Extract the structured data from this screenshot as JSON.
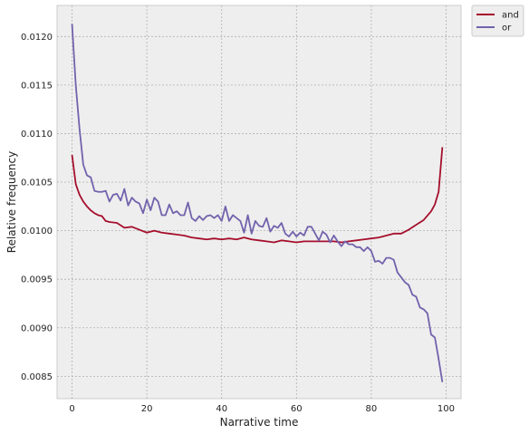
{
  "chart_data": {
    "type": "line",
    "title": "",
    "xlabel": "Narrative time",
    "ylabel": "Relative frequency",
    "xlim": [
      -4,
      104
    ],
    "ylim": [
      0.00827,
      0.01232
    ],
    "xticks": [
      0,
      20,
      40,
      60,
      80,
      100
    ],
    "yticks": [
      0.0085,
      0.009,
      0.0095,
      0.01,
      0.0105,
      0.011,
      0.0115,
      0.012
    ],
    "xtick_labels": [
      "0",
      "20",
      "40",
      "60",
      "80",
      "100"
    ],
    "ytick_labels": [
      "0.0085",
      "0.0090",
      "0.0095",
      "0.0100",
      "0.0105",
      "0.0110",
      "0.0115",
      "0.0120"
    ],
    "grid": true,
    "legend_position": "outside-top-right",
    "series": [
      {
        "name": "and",
        "color": "#a50f2c",
        "x": [
          0,
          1,
          2,
          3,
          4,
          5,
          6,
          7,
          8,
          9,
          10,
          12,
          14,
          16,
          18,
          20,
          22,
          24,
          26,
          28,
          30,
          32,
          34,
          36,
          38,
          40,
          42,
          44,
          46,
          48,
          50,
          52,
          54,
          56,
          58,
          60,
          62,
          64,
          66,
          68,
          70,
          72,
          74,
          76,
          78,
          80,
          82,
          84,
          86,
          88,
          90,
          92,
          94,
          96,
          97,
          98,
          99
        ],
        "y": [
          0.01078,
          0.01048,
          0.01037,
          0.0103,
          0.01025,
          0.01021,
          0.01018,
          0.01016,
          0.01015,
          0.0101,
          0.01009,
          0.01008,
          0.01003,
          0.01004,
          0.01001,
          0.00998,
          0.01,
          0.00998,
          0.00997,
          0.00996,
          0.00995,
          0.00993,
          0.00992,
          0.00991,
          0.00992,
          0.00991,
          0.00992,
          0.00991,
          0.00993,
          0.00991,
          0.0099,
          0.00989,
          0.00988,
          0.0099,
          0.00989,
          0.00988,
          0.00989,
          0.00989,
          0.00989,
          0.00989,
          0.00989,
          0.00988,
          0.00989,
          0.0099,
          0.00991,
          0.00992,
          0.00993,
          0.00995,
          0.00997,
          0.00997,
          0.01001,
          0.01006,
          0.01011,
          0.0102,
          0.01027,
          0.0104,
          0.01086
        ]
      },
      {
        "name": "or",
        "color": "#7262ac",
        "x": [
          0,
          1,
          2,
          3,
          4,
          5,
          6,
          7,
          8,
          9,
          10,
          11,
          12,
          13,
          14,
          15,
          16,
          17,
          18,
          19,
          20,
          21,
          22,
          23,
          24,
          25,
          26,
          27,
          28,
          29,
          30,
          31,
          32,
          33,
          34,
          35,
          36,
          37,
          38,
          39,
          40,
          41,
          42,
          43,
          44,
          45,
          46,
          47,
          48,
          49,
          50,
          51,
          52,
          53,
          54,
          55,
          56,
          57,
          58,
          59,
          60,
          61,
          62,
          63,
          64,
          65,
          66,
          67,
          68,
          69,
          70,
          71,
          72,
          73,
          74,
          75,
          76,
          77,
          78,
          79,
          80,
          81,
          82,
          83,
          84,
          85,
          86,
          87,
          88,
          89,
          90,
          91,
          92,
          93,
          94,
          95,
          96,
          97,
          98,
          99
        ],
        "y": [
          0.01213,
          0.0115,
          0.01105,
          0.01068,
          0.01057,
          0.01055,
          0.01041,
          0.0104,
          0.0104,
          0.01041,
          0.0103,
          0.01037,
          0.01038,
          0.01031,
          0.01043,
          0.01026,
          0.01034,
          0.0103,
          0.01028,
          0.01018,
          0.01032,
          0.01021,
          0.01034,
          0.0103,
          0.01016,
          0.01016,
          0.01027,
          0.01018,
          0.0102,
          0.01016,
          0.01016,
          0.01029,
          0.01013,
          0.0101,
          0.01015,
          0.01011,
          0.01015,
          0.01016,
          0.01013,
          0.01016,
          0.0101,
          0.01025,
          0.0101,
          0.01016,
          0.01013,
          0.0101,
          0.00998,
          0.01016,
          0.00997,
          0.0101,
          0.01005,
          0.01004,
          0.01013,
          0.00999,
          0.01005,
          0.01003,
          0.01008,
          0.00997,
          0.00994,
          0.00999,
          0.00994,
          0.00998,
          0.00995,
          0.01004,
          0.01004,
          0.00997,
          0.0099,
          0.00999,
          0.00996,
          0.00988,
          0.00995,
          0.00989,
          0.00984,
          0.00989,
          0.00986,
          0.00986,
          0.00983,
          0.00983,
          0.00979,
          0.00983,
          0.00979,
          0.00968,
          0.00969,
          0.00966,
          0.00972,
          0.00972,
          0.0097,
          0.00957,
          0.00952,
          0.00947,
          0.00944,
          0.00934,
          0.00932,
          0.00921,
          0.00919,
          0.00915,
          0.00893,
          0.0089,
          0.00868,
          0.00844
        ]
      }
    ]
  }
}
